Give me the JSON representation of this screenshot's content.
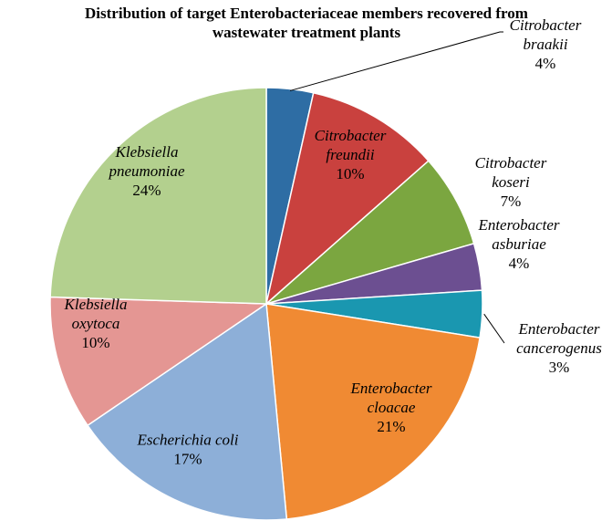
{
  "chart_data": {
    "type": "pie",
    "title_lines": [
      "Distribution of target Enterobacteriaceae members recovered from",
      "wastewater treatment plants"
    ],
    "slices": [
      {
        "name_lines": [
          "Citrobacter",
          "braakii"
        ],
        "label": "4%",
        "value": 3.5,
        "color": "#2e6da4"
      },
      {
        "name_lines": [
          "Citrobacter",
          "freundii"
        ],
        "label": "10%",
        "value": 10,
        "color": "#c9413e"
      },
      {
        "name_lines": [
          "Citrobacter",
          "koseri"
        ],
        "label": "7%",
        "value": 7,
        "color": "#7ba640"
      },
      {
        "name_lines": [
          "Enterobacter",
          "asburiae"
        ],
        "label": "4%",
        "value": 3.5,
        "color": "#6c4f91"
      },
      {
        "name_lines": [
          "Enterobacter",
          "cancerogenus"
        ],
        "label": "3%",
        "value": 3.5,
        "color": "#1a97b0"
      },
      {
        "name_lines": [
          "Enterobacter",
          "cloacae"
        ],
        "label": "21%",
        "value": 21,
        "color": "#f08a33"
      },
      {
        "name_lines": [
          "Escherichia coli"
        ],
        "label": "17%",
        "value": 17,
        "color": "#8dafd8"
      },
      {
        "name_lines": [
          "Klebsiella",
          "oxytoca"
        ],
        "label": "10%",
        "value": 10,
        "color": "#e49693"
      },
      {
        "name_lines": [
          "Klebsiella",
          "pneumoniae"
        ],
        "label": "24%",
        "value": 24.5,
        "color": "#b3d08e"
      }
    ]
  }
}
